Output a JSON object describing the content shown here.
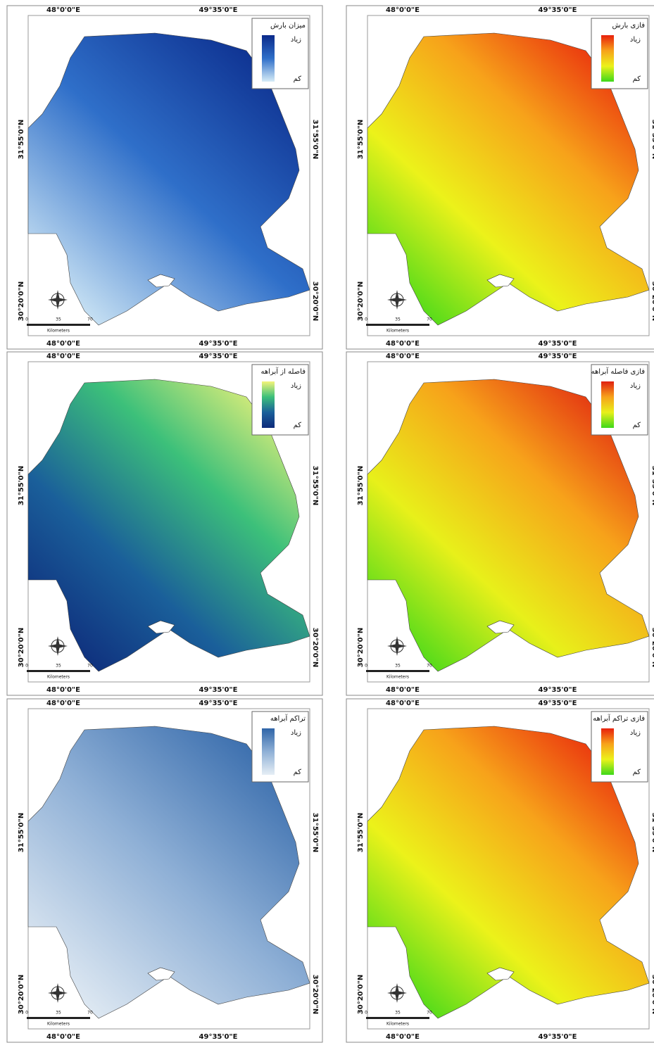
{
  "panels": [
    {
      "title": "میزان بارش",
      "legend": {
        "high": "زیاد",
        "low": "کم"
      },
      "ramp": [
        "#0a2a8a",
        "#2f6fc9",
        "#d6ecf7"
      ]
    },
    {
      "title": "فازی بارش",
      "legend": {
        "high": "زیاد",
        "low": "کم"
      },
      "ramp": [
        "#e8200c",
        "#f7a21a",
        "#ecf21a",
        "#3ed81a"
      ]
    },
    {
      "title": "فاصله از آبراهه",
      "legend": {
        "high": "زیاد",
        "low": "کم"
      },
      "ramp": [
        "#f4f47a",
        "#3cc07a",
        "#1a5f9a",
        "#0e2a7a"
      ]
    },
    {
      "title": "فازی فاصله آبراهه",
      "legend": {
        "high": "زیاد",
        "low": "کم"
      },
      "ramp": [
        "#e02010",
        "#f7a21a",
        "#e8f01a",
        "#3ed81a"
      ]
    },
    {
      "title": "تراکم آبراهه",
      "legend": {
        "high": "زیاد",
        "low": "کم"
      },
      "ramp": [
        "#2f65a8",
        "#8fb0d6",
        "#e6eef5"
      ]
    },
    {
      "title": "فازی تراکم آبراهه",
      "legend": {
        "high": "زیاد",
        "low": "کم"
      },
      "ramp": [
        "#e8200c",
        "#f7a21a",
        "#ecf21a",
        "#3ed81a"
      ]
    }
  ],
  "graticule": {
    "lon": [
      "48°0'0\"E",
      "49°35'0\"E"
    ],
    "lat": [
      "31°55'0\"N",
      "30°20'0\"N"
    ]
  },
  "scale": {
    "ticks": [
      "0",
      "35",
      "70"
    ],
    "unit": "Kilometers"
  }
}
